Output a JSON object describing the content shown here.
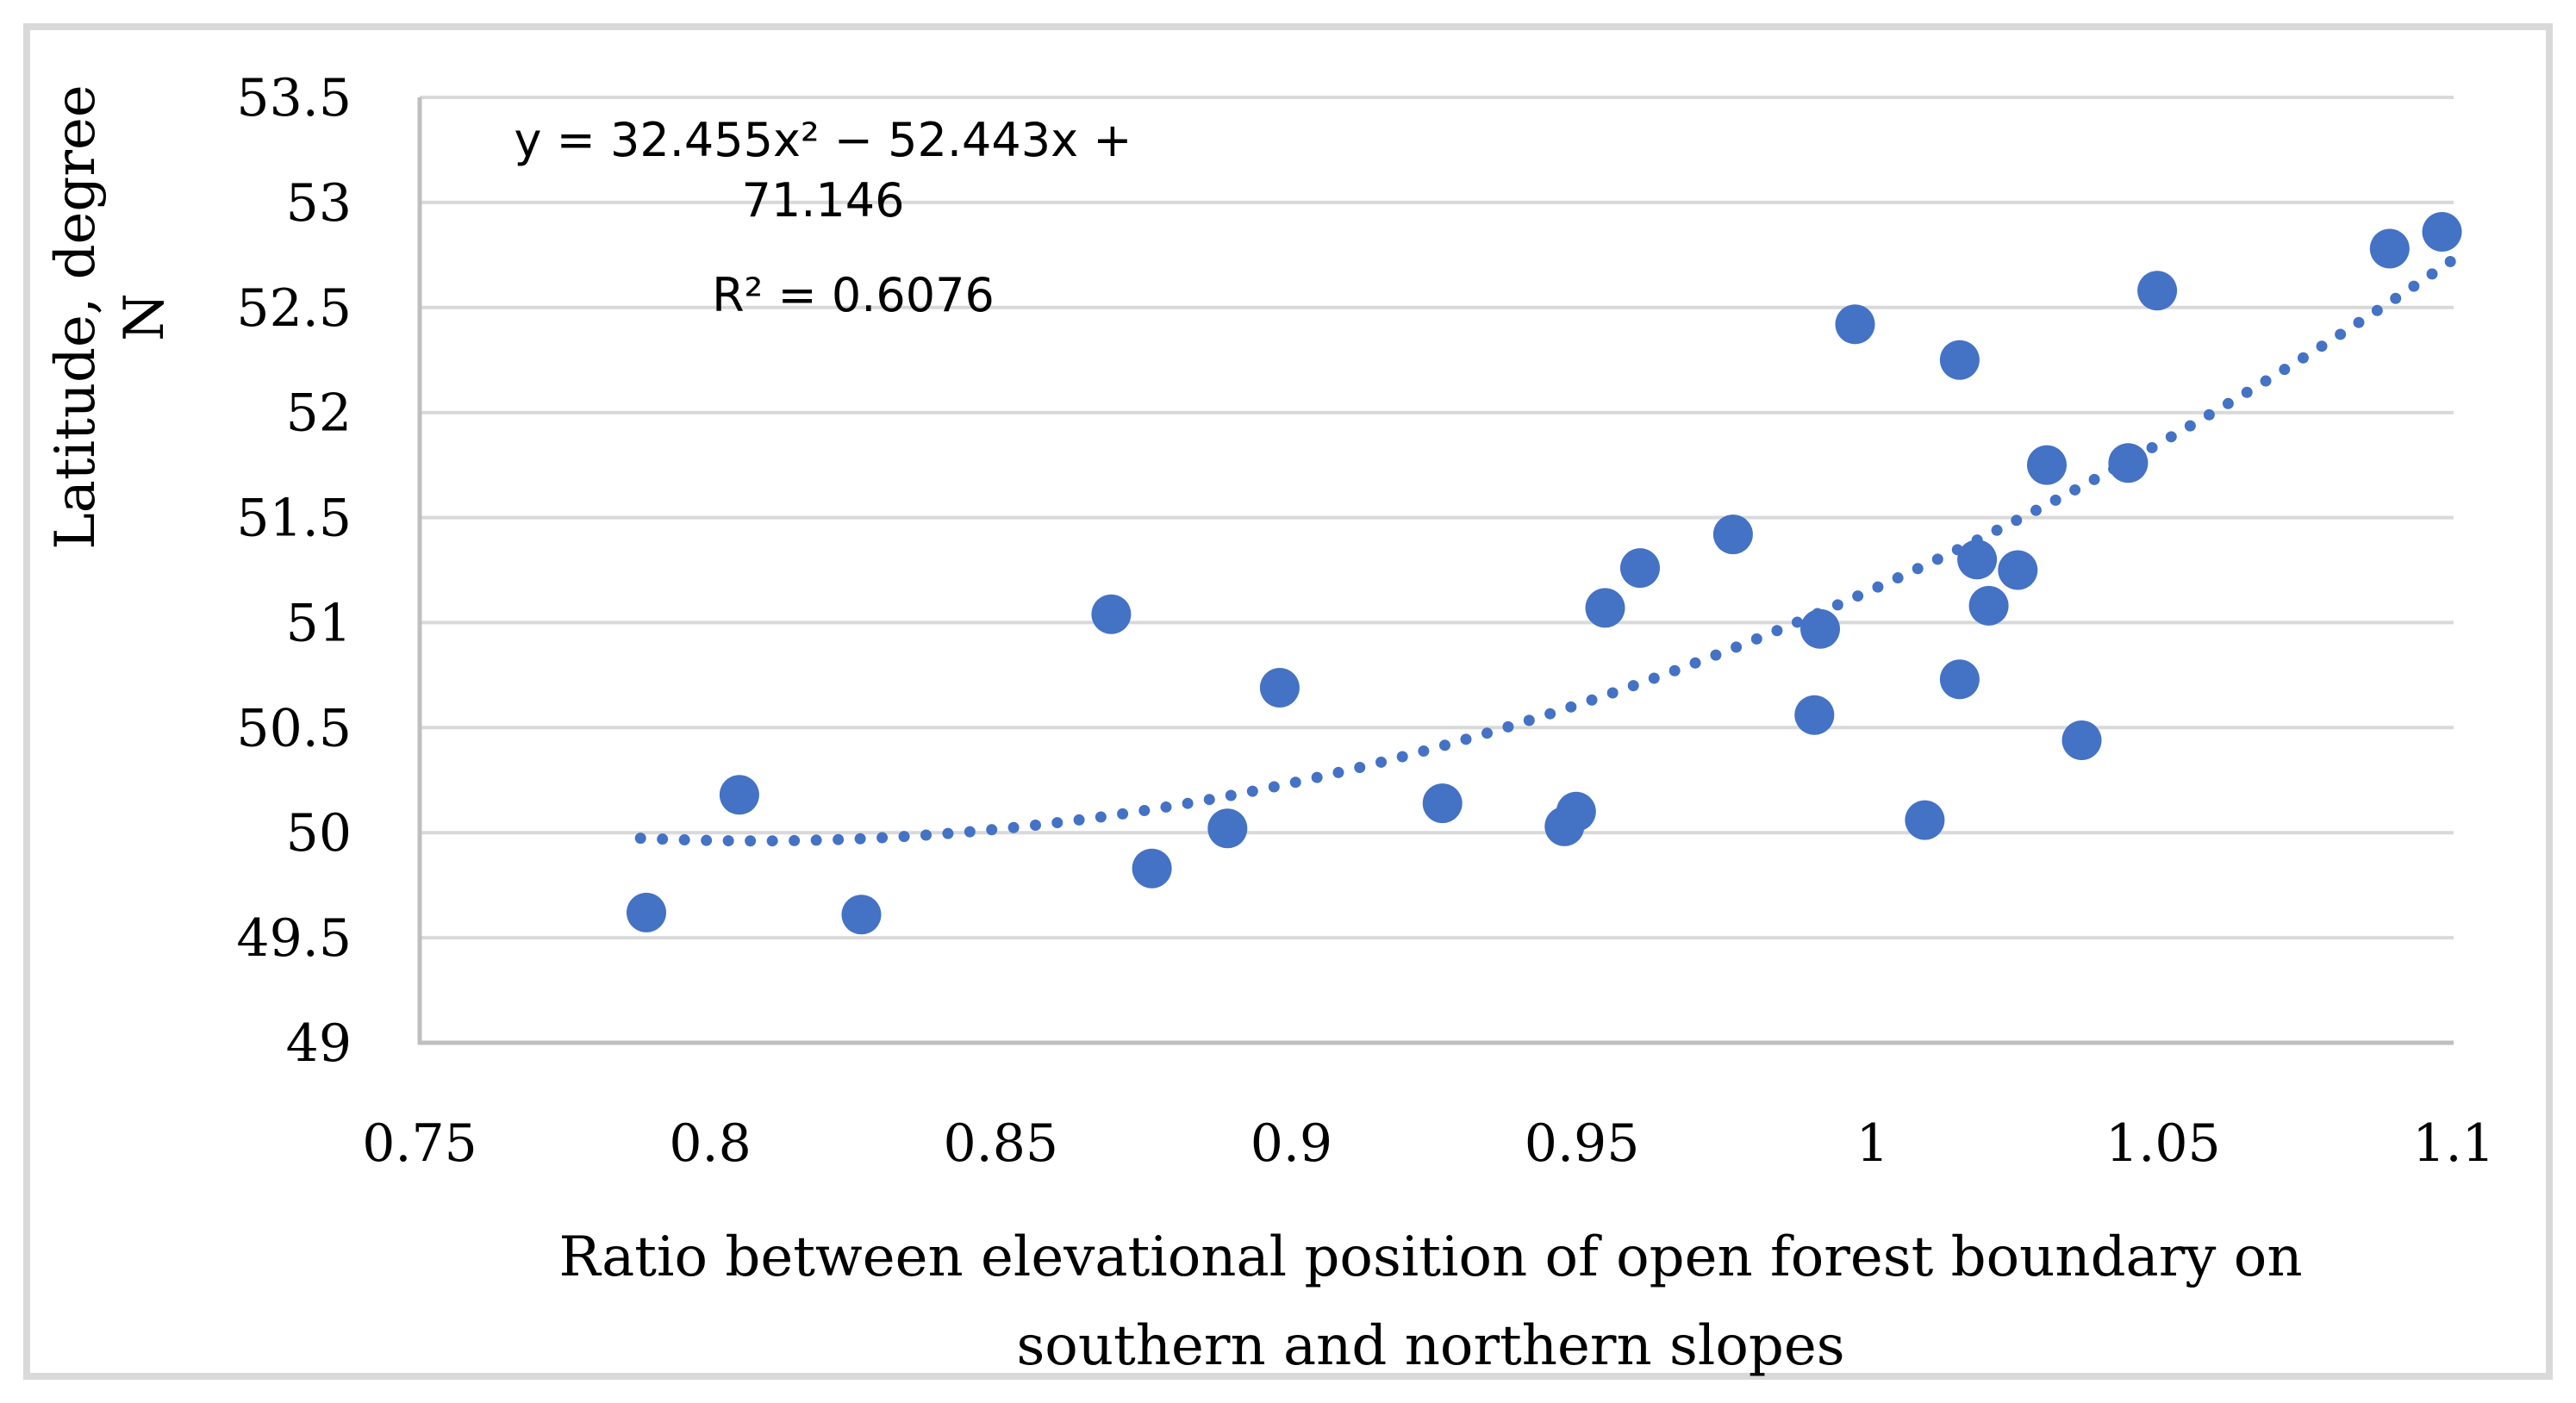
{
  "chart_data": {
    "type": "scatter",
    "title": "",
    "xlabel": "Ratio between elevational position of open forest boundary on southern and northern slopes",
    "xlabel_lines": [
      "Ratio between elevational position of open forest boundary on",
      "southern and northern slopes"
    ],
    "ylabel": "Latitude, degree N",
    "xlim": [
      0.75,
      1.1
    ],
    "ylim": [
      49,
      53.5
    ],
    "x_ticks": [
      "0.75",
      "0.8",
      "0.85",
      "0.9",
      "0.95",
      "1",
      "1.05",
      "1.1"
    ],
    "y_ticks": [
      "49",
      "49.5",
      "50",
      "50.5",
      "51",
      "51.5",
      "52",
      "52.5",
      "53",
      "53.5"
    ],
    "grid": "horizontal-only",
    "legend": "none",
    "points": [
      {
        "x": 0.789,
        "y": 49.62
      },
      {
        "x": 0.805,
        "y": 50.18
      },
      {
        "x": 0.826,
        "y": 49.61
      },
      {
        "x": 0.869,
        "y": 51.04
      },
      {
        "x": 0.876,
        "y": 49.83
      },
      {
        "x": 0.889,
        "y": 50.02
      },
      {
        "x": 0.898,
        "y": 50.69
      },
      {
        "x": 0.926,
        "y": 50.14
      },
      {
        "x": 0.947,
        "y": 50.03
      },
      {
        "x": 0.949,
        "y": 50.1
      },
      {
        "x": 0.954,
        "y": 51.07
      },
      {
        "x": 0.96,
        "y": 51.26
      },
      {
        "x": 0.976,
        "y": 51.42
      },
      {
        "x": 0.99,
        "y": 50.56
      },
      {
        "x": 0.991,
        "y": 50.97
      },
      {
        "x": 0.997,
        "y": 52.42
      },
      {
        "x": 1.009,
        "y": 50.06
      },
      {
        "x": 1.015,
        "y": 52.25
      },
      {
        "x": 1.015,
        "y": 50.73
      },
      {
        "x": 1.018,
        "y": 51.3
      },
      {
        "x": 1.02,
        "y": 51.08
      },
      {
        "x": 1.025,
        "y": 51.25
      },
      {
        "x": 1.03,
        "y": 51.75
      },
      {
        "x": 1.036,
        "y": 50.44
      },
      {
        "x": 1.044,
        "y": 51.76
      },
      {
        "x": 1.049,
        "y": 52.58
      },
      {
        "x": 1.089,
        "y": 52.78
      },
      {
        "x": 1.098,
        "y": 52.86
      }
    ],
    "trendline": {
      "kind": "polynomial",
      "order": 2,
      "a": 32.455,
      "b": -52.443,
      "c": 71.146,
      "x_start": 0.788,
      "x_end": 1.1,
      "style": "dotted"
    },
    "annotation": {
      "equation": "y = 32.455x² − 52.443x + 71.146",
      "r_squared": "R² = 0.6076"
    },
    "colors": {
      "point": "#4472C4",
      "trendline": "#4472C4",
      "gridline": "#D9D9D9",
      "axis": "#BFBFBF",
      "frame": "#D9D9D9",
      "text": "#000000"
    }
  }
}
